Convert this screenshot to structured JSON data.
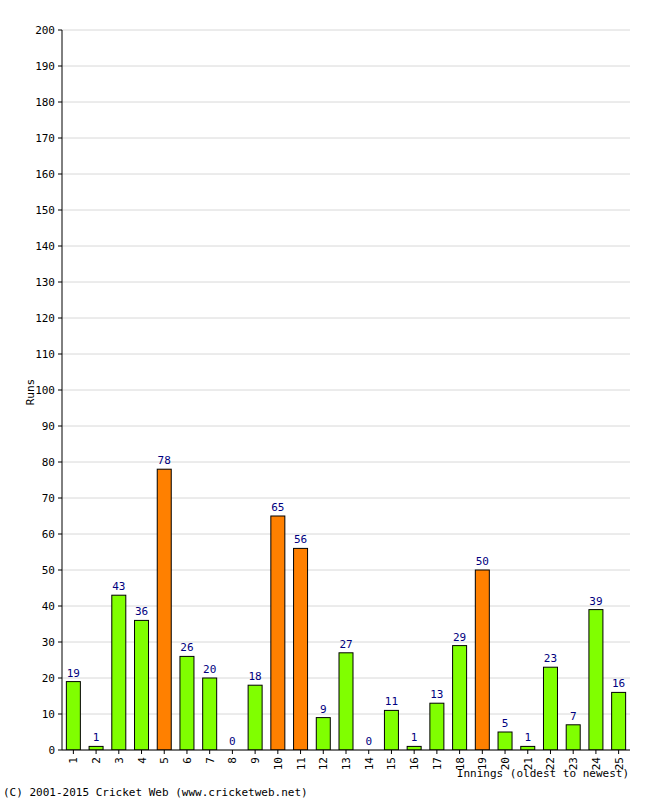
{
  "chart_data": {
    "type": "bar",
    "x_label": "Innings (oldest to newest)",
    "y_label": "Runs",
    "annotations": [
      "(C) 2001-2015 Cricket Web (www.cricketweb.net)"
    ],
    "categories": [
      "1",
      "2",
      "3",
      "4",
      "5",
      "6",
      "7",
      "8",
      "9",
      "10",
      "11",
      "12",
      "13",
      "14",
      "15",
      "16",
      "17",
      "18",
      "19",
      "20",
      "21",
      "22",
      "23",
      "24",
      "25"
    ],
    "values": [
      19,
      1,
      43,
      36,
      78,
      26,
      20,
      0,
      18,
      65,
      56,
      9,
      27,
      0,
      11,
      1,
      13,
      29,
      50,
      5,
      1,
      23,
      7,
      39,
      16
    ],
    "colors": [
      "#80ff00",
      "#80ff00",
      "#80ff00",
      "#80ff00",
      "#ff8000",
      "#80ff00",
      "#80ff00",
      "#80ff00",
      "#80ff00",
      "#ff8000",
      "#ff8000",
      "#80ff00",
      "#80ff00",
      "#80ff00",
      "#80ff00",
      "#80ff00",
      "#80ff00",
      "#80ff00",
      "#ff8000",
      "#80ff00",
      "#80ff00",
      "#80ff00",
      "#80ff00",
      "#80ff00",
      "#80ff00"
    ],
    "ylim": [
      0,
      200
    ],
    "yticks": [
      0,
      10,
      20,
      30,
      40,
      50,
      60,
      70,
      80,
      90,
      100,
      110,
      120,
      130,
      140,
      150,
      160,
      170,
      180,
      190,
      200
    ],
    "grid": true,
    "data_labels": true
  }
}
